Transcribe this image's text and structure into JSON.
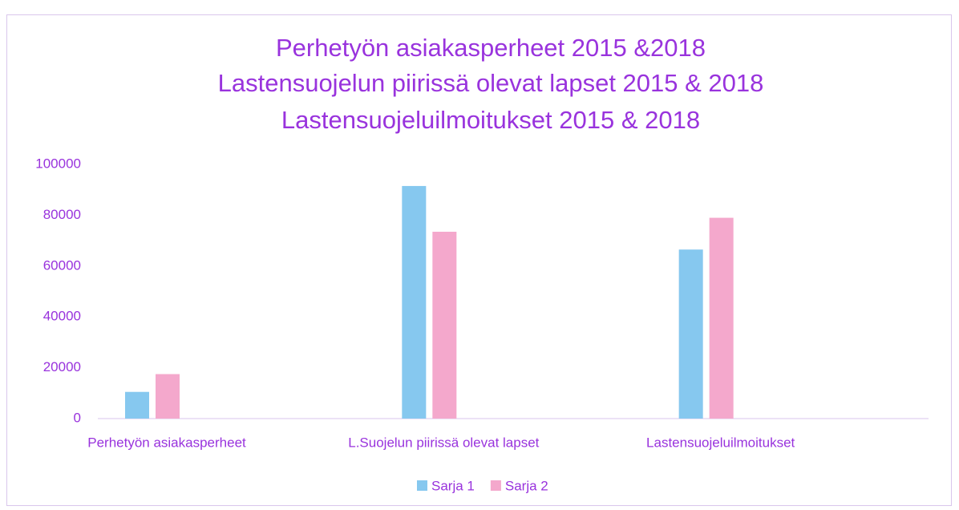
{
  "chart_data": {
    "type": "bar",
    "title": [
      "Perhetyön asiakasperheet 2015 &2018",
      "Lastensuojelun piirissä olevat lapset 2015 & 2018",
      "Lastensuojeluilmoitukset 2015 & 2018"
    ],
    "categories": [
      "Perhetyön asiakasperheet",
      "L.Suojelun piirissä olevat lapset",
      "Lastensuojeluilmoitukset"
    ],
    "series": [
      {
        "name": "Sarja 1",
        "color": "#86c8ef",
        "values": [
          10500,
          91500,
          66500
        ]
      },
      {
        "name": "Sarja 2",
        "color": "#f4a8cc",
        "values": [
          17500,
          73500,
          79000
        ]
      }
    ],
    "ylim": [
      0,
      100000
    ],
    "yticks": [
      0,
      20000,
      40000,
      60000,
      80000,
      100000
    ],
    "grid": false,
    "legend": "bottom"
  }
}
